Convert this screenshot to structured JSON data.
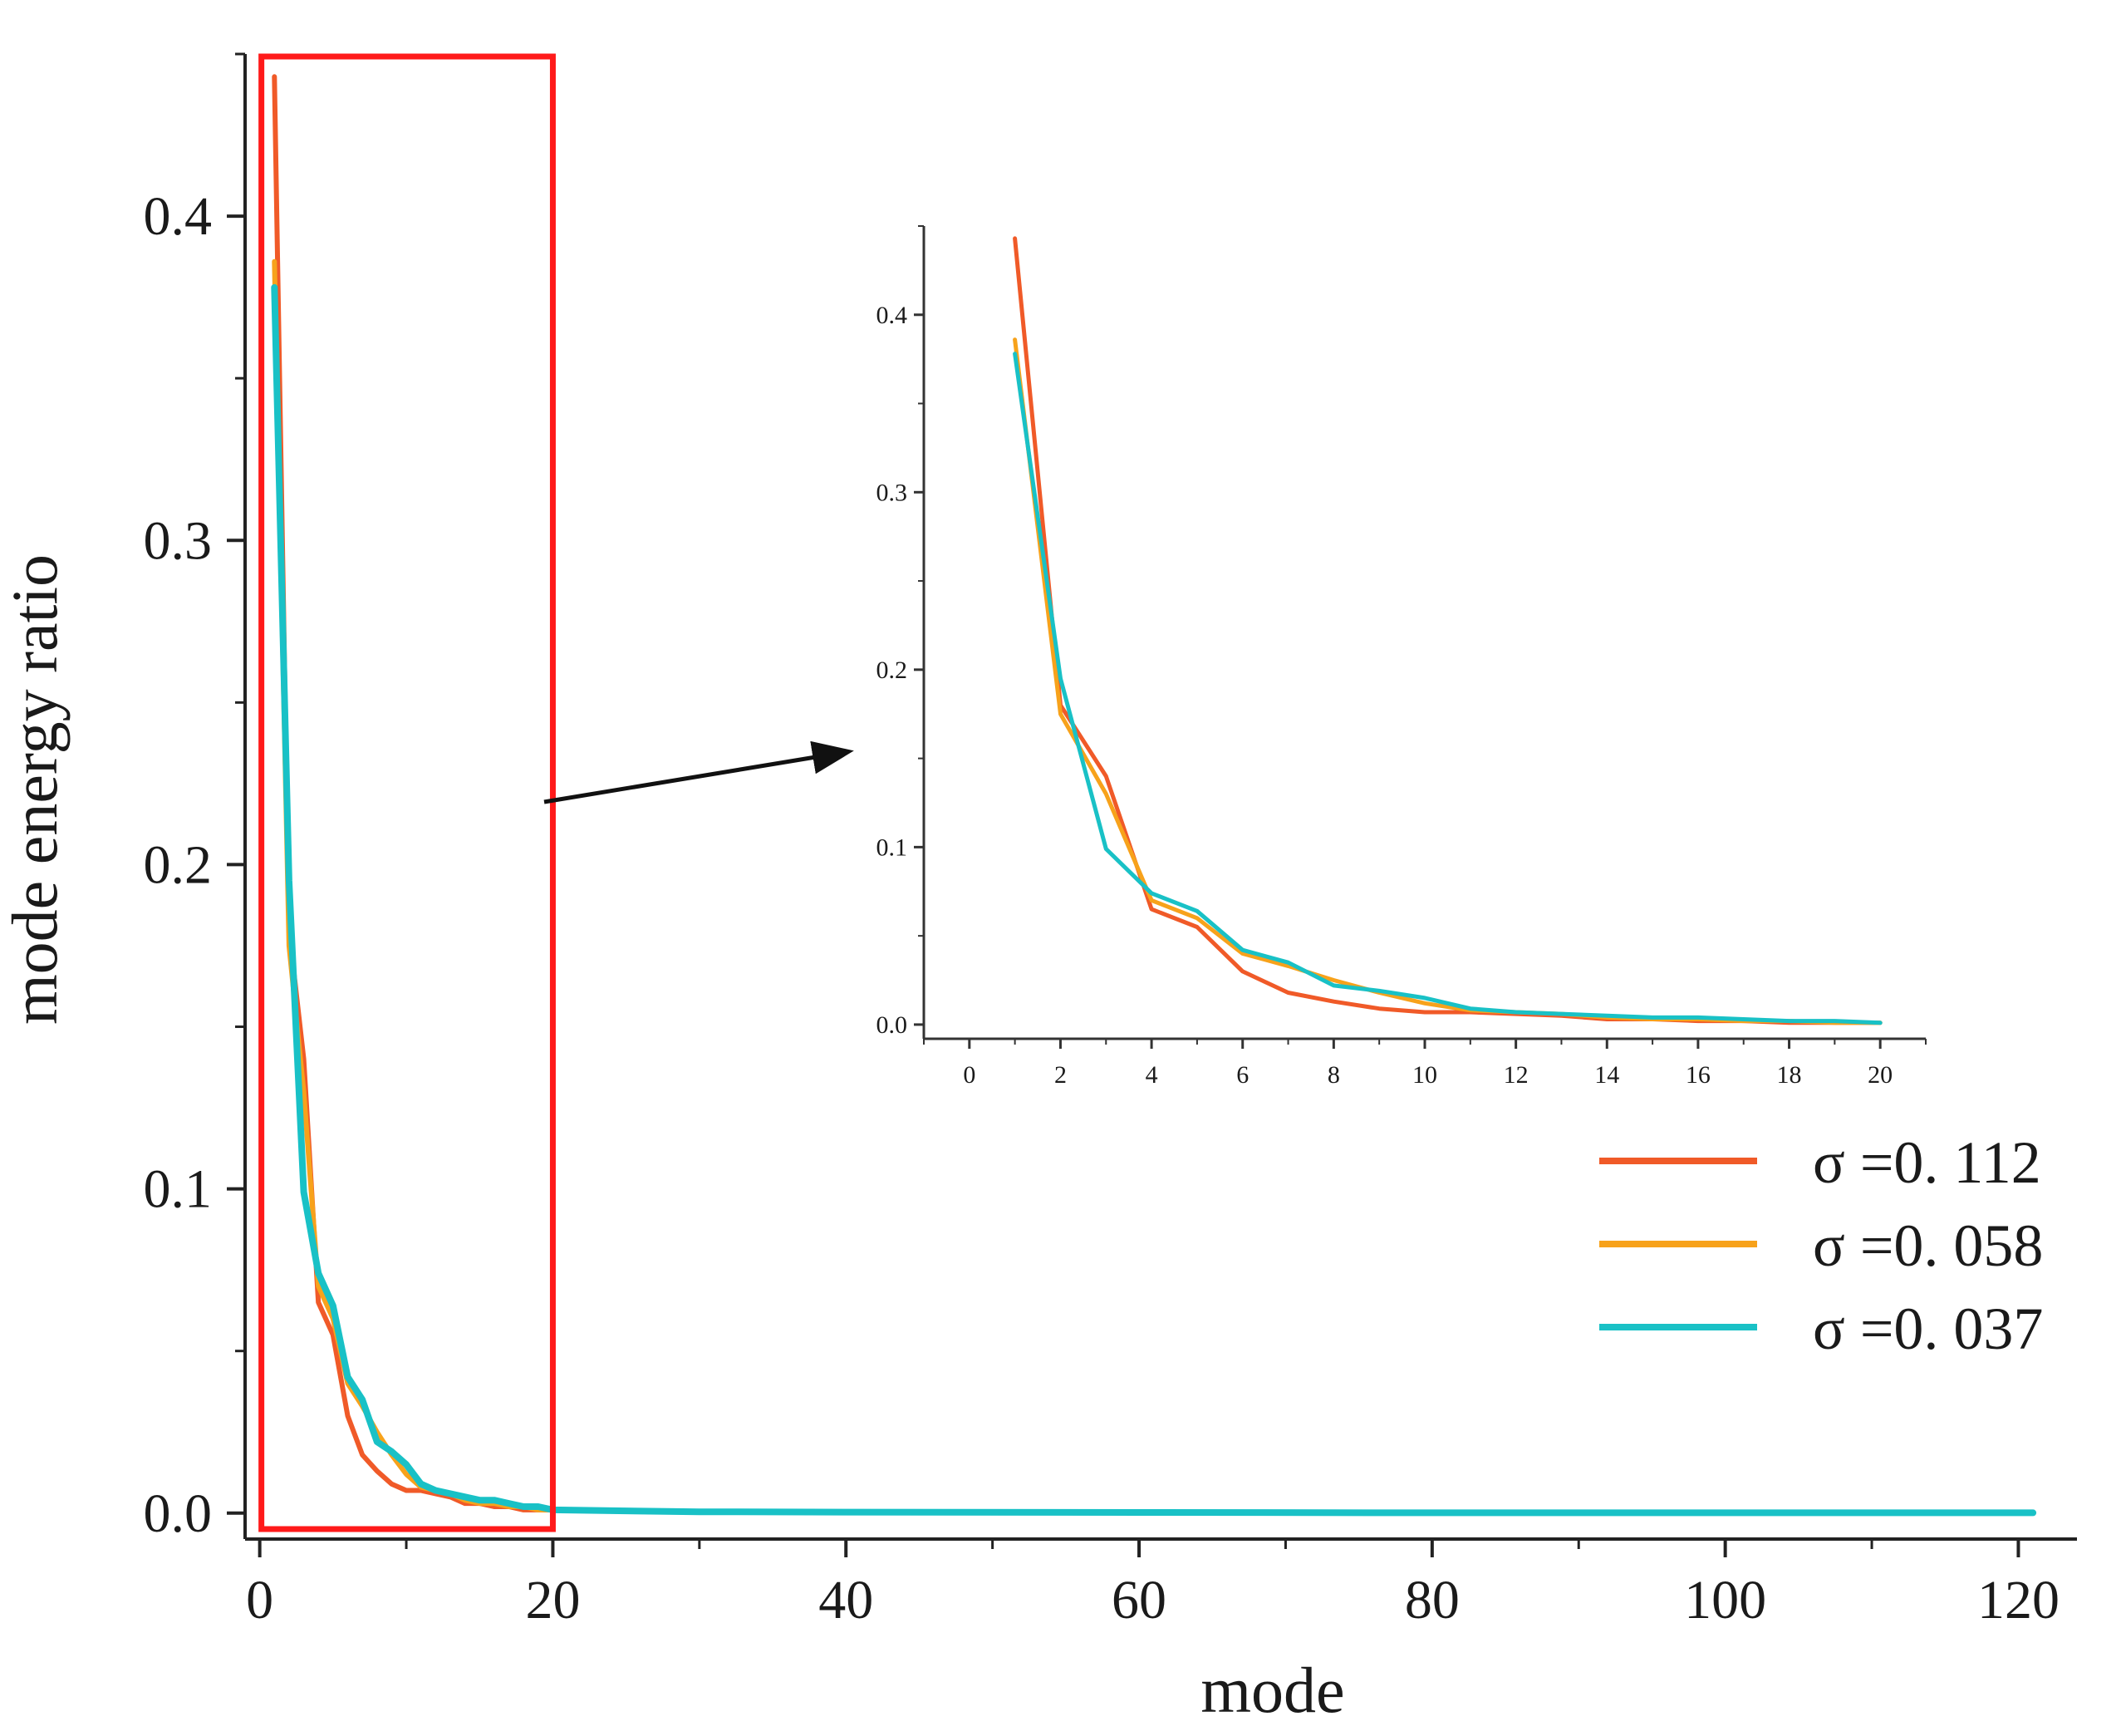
{
  "chart_data": [
    {
      "type": "line",
      "panel": "main",
      "title": "",
      "xlabel": "mode",
      "ylabel": "mode energy ratio",
      "xlim": [
        -1,
        124
      ],
      "ylim": [
        -0.008,
        0.45
      ],
      "xticks": [
        0,
        20,
        40,
        60,
        80,
        100,
        120
      ],
      "yticks": [
        0.0,
        0.1,
        0.2,
        0.3,
        0.4
      ],
      "ytick_labels": [
        "0.0",
        "0.1",
        "0.2",
        "0.3",
        "0.4"
      ],
      "grid": false,
      "legend": "right",
      "annotations": [
        "red box highlighting modes 0-20",
        "arrow pointing to zoomed inset"
      ],
      "series": [
        {
          "name": "σ =0. 112",
          "color": "#f05a28",
          "x": [
            1,
            2,
            3,
            4,
            5,
            6,
            7,
            8,
            9,
            10,
            11,
            12,
            13,
            14,
            15,
            16,
            17,
            18,
            19,
            20,
            25,
            30,
            40,
            60,
            80,
            100,
            121
          ],
          "y": [
            0.443,
            0.18,
            0.14,
            0.065,
            0.055,
            0.03,
            0.018,
            0.013,
            0.009,
            0.007,
            0.007,
            0.006,
            0.005,
            0.003,
            0.003,
            0.002,
            0.002,
            0.001,
            0.001,
            0.001,
            0.0005,
            0.0003,
            0.0002,
            0.0001,
            0.0001,
            0.0001,
            0.0001
          ]
        },
        {
          "name": "σ =0. 058",
          "color": "#f7a21b",
          "x": [
            1,
            2,
            3,
            4,
            5,
            6,
            7,
            8,
            9,
            10,
            11,
            12,
            13,
            14,
            15,
            16,
            17,
            18,
            19,
            20,
            25,
            30,
            40,
            60,
            80,
            100,
            121
          ],
          "y": [
            0.386,
            0.175,
            0.13,
            0.07,
            0.06,
            0.04,
            0.033,
            0.025,
            0.018,
            0.012,
            0.008,
            0.007,
            0.006,
            0.004,
            0.003,
            0.003,
            0.002,
            0.002,
            0.001,
            0.001,
            0.0005,
            0.0003,
            0.0002,
            0.0001,
            0.0001,
            0.0001,
            0.0001
          ]
        },
        {
          "name": "σ =0. 037",
          "color": "#19c1c6",
          "x": [
            1,
            2,
            3,
            4,
            5,
            6,
            7,
            8,
            9,
            10,
            11,
            12,
            13,
            14,
            15,
            16,
            17,
            18,
            19,
            20,
            25,
            30,
            40,
            60,
            80,
            100,
            121
          ],
          "y": [
            0.378,
            0.195,
            0.099,
            0.074,
            0.064,
            0.042,
            0.035,
            0.022,
            0.019,
            0.015,
            0.009,
            0.007,
            0.006,
            0.005,
            0.004,
            0.004,
            0.003,
            0.002,
            0.002,
            0.001,
            0.0007,
            0.0004,
            0.0003,
            0.0002,
            0.0001,
            0.0001,
            0.0001
          ]
        }
      ]
    },
    {
      "type": "line",
      "panel": "inset",
      "title": "",
      "xlabel": "",
      "ylabel": "",
      "xlim": [
        -1,
        21
      ],
      "ylim": [
        -0.008,
        0.45
      ],
      "xticks": [
        0,
        2,
        4,
        6,
        8,
        10,
        12,
        14,
        16,
        18,
        20
      ],
      "yticks": [
        0.0,
        0.1,
        0.2,
        0.3,
        0.4
      ],
      "ytick_labels": [
        "0.0",
        "0.1",
        "0.2",
        "0.3",
        "0.4"
      ],
      "grid": false,
      "series": [
        {
          "color": "#f05a28",
          "x": [
            1,
            2,
            3,
            4,
            5,
            6,
            7,
            8,
            9,
            10,
            11,
            12,
            13,
            14,
            15,
            16,
            17,
            18,
            19,
            20
          ],
          "y": [
            0.443,
            0.18,
            0.14,
            0.065,
            0.055,
            0.03,
            0.018,
            0.013,
            0.009,
            0.007,
            0.007,
            0.006,
            0.005,
            0.003,
            0.003,
            0.002,
            0.002,
            0.001,
            0.001,
            0.001
          ]
        },
        {
          "color": "#f7a21b",
          "x": [
            1,
            2,
            3,
            4,
            5,
            6,
            7,
            8,
            9,
            10,
            11,
            12,
            13,
            14,
            15,
            16,
            17,
            18,
            19,
            20
          ],
          "y": [
            0.386,
            0.175,
            0.13,
            0.07,
            0.06,
            0.04,
            0.033,
            0.025,
            0.018,
            0.012,
            0.008,
            0.007,
            0.006,
            0.004,
            0.003,
            0.003,
            0.002,
            0.002,
            0.001,
            0.001
          ]
        },
        {
          "color": "#19c1c6",
          "x": [
            1,
            2,
            3,
            4,
            5,
            6,
            7,
            8,
            9,
            10,
            11,
            12,
            13,
            14,
            15,
            16,
            17,
            18,
            19,
            20
          ],
          "y": [
            0.378,
            0.195,
            0.099,
            0.074,
            0.064,
            0.042,
            0.035,
            0.022,
            0.019,
            0.015,
            0.009,
            0.007,
            0.006,
            0.005,
            0.004,
            0.004,
            0.003,
            0.002,
            0.002,
            0.001
          ]
        }
      ]
    }
  ],
  "highlight": {
    "x_range": [
      0,
      20
    ],
    "color": "#ff1a1a"
  }
}
